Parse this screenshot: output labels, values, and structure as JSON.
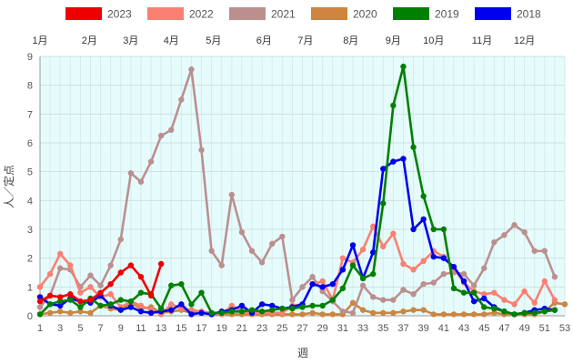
{
  "chart_data": {
    "type": "line",
    "xlabel": "週",
    "ylabel": "人／定点",
    "xlim": [
      1,
      53
    ],
    "ylim": [
      0,
      9
    ],
    "x_ticks": [
      1,
      3,
      5,
      7,
      9,
      11,
      13,
      15,
      17,
      19,
      21,
      23,
      25,
      27,
      29,
      31,
      33,
      35,
      37,
      39,
      41,
      43,
      45,
      47,
      49,
      51,
      53
    ],
    "y_ticks": [
      0,
      1,
      2,
      3,
      4,
      5,
      6,
      7,
      8,
      9
    ],
    "grid": true,
    "legend_position": "top",
    "months": [
      {
        "label": "1月",
        "week": 1
      },
      {
        "label": "2月",
        "week": 5.9
      },
      {
        "label": "3月",
        "week": 10
      },
      {
        "label": "4月",
        "week": 14
      },
      {
        "label": "5月",
        "week": 18.2
      },
      {
        "label": "6月",
        "week": 23.2
      },
      {
        "label": "7月",
        "week": 27.3
      },
      {
        "label": "8月",
        "week": 31.8
      },
      {
        "label": "9月",
        "week": 36
      },
      {
        "label": "10月",
        "week": 40
      },
      {
        "label": "11月",
        "week": 44.8
      },
      {
        "label": "12月",
        "week": 49
      }
    ],
    "series": [
      {
        "name": "2018",
        "color": "#0000ee",
        "x": [
          1,
          2,
          3,
          4,
          5,
          6,
          7,
          8,
          9,
          10,
          11,
          12,
          13,
          14,
          15,
          16,
          17,
          18,
          19,
          20,
          21,
          22,
          23,
          24,
          25,
          26,
          27,
          28,
          29,
          30,
          31,
          32,
          33,
          34,
          35,
          36,
          37,
          38,
          39,
          40,
          41,
          42,
          43,
          44,
          45,
          46,
          47,
          48,
          49,
          50,
          51,
          52
        ],
        "values": [
          0.65,
          0.4,
          0.35,
          0.6,
          0.5,
          0.45,
          0.7,
          0.35,
          0.2,
          0.3,
          0.15,
          0.1,
          0.15,
          0.2,
          0.4,
          0.05,
          0.1,
          0.05,
          0.15,
          0.2,
          0.35,
          0.1,
          0.4,
          0.35,
          0.25,
          0.3,
          0.4,
          1.1,
          1.0,
          1.1,
          1.6,
          2.45,
          1.3,
          2.2,
          5.1,
          5.35,
          5.45,
          3.0,
          3.35,
          2.05,
          2.0,
          1.7,
          1.2,
          0.5,
          0.6,
          0.3,
          0.15,
          0.05,
          0.1,
          0.2,
          0.25,
          0.2
        ]
      },
      {
        "name": "2019",
        "color": "#008000",
        "x": [
          1,
          2,
          3,
          4,
          5,
          6,
          7,
          8,
          9,
          10,
          11,
          12,
          13,
          14,
          15,
          16,
          17,
          18,
          19,
          20,
          21,
          22,
          23,
          24,
          25,
          26,
          27,
          28,
          29,
          30,
          31,
          32,
          33,
          34,
          35,
          36,
          37,
          38,
          39,
          40,
          41,
          42,
          43,
          44,
          45,
          46,
          47,
          48,
          49,
          50,
          51,
          52
        ],
        "values": [
          0.05,
          0.4,
          0.5,
          0.55,
          0.3,
          0.6,
          0.35,
          0.4,
          0.55,
          0.5,
          0.8,
          0.75,
          0.25,
          1.05,
          1.1,
          0.4,
          0.8,
          0.1,
          0.1,
          0.15,
          0.15,
          0.2,
          0.15,
          0.2,
          0.25,
          0.25,
          0.3,
          0.35,
          0.35,
          0.55,
          0.95,
          1.75,
          1.3,
          1.45,
          3.9,
          7.3,
          8.65,
          5.85,
          4.15,
          3.0,
          3.0,
          0.95,
          0.8,
          0.8,
          0.3,
          0.25,
          0.15,
          0.05,
          0.1,
          0.1,
          0.15,
          0.2
        ]
      },
      {
        "name": "2020",
        "color": "#cd853f",
        "x": [
          1,
          2,
          3,
          4,
          5,
          6,
          7,
          8,
          9,
          10,
          11,
          12,
          13,
          14,
          15,
          16,
          17,
          18,
          19,
          20,
          21,
          22,
          23,
          24,
          25,
          26,
          27,
          28,
          29,
          30,
          31,
          32,
          33,
          34,
          35,
          36,
          37,
          38,
          39,
          40,
          41,
          42,
          43,
          44,
          45,
          46,
          47,
          48,
          49,
          50,
          51,
          52,
          53
        ],
        "values": [
          0.05,
          0.1,
          0.15,
          0.1,
          0.15,
          0.1,
          0.35,
          0.25,
          0.2,
          0.45,
          0.25,
          0.3,
          0.1,
          0.15,
          0.2,
          0.1,
          0.1,
          0.05,
          0.05,
          0.05,
          0.05,
          0.05,
          0.05,
          0.05,
          0.05,
          0.05,
          0.05,
          0.1,
          0.05,
          0.05,
          0.05,
          0.45,
          0.2,
          0.1,
          0.1,
          0.1,
          0.15,
          0.2,
          0.2,
          0.05,
          0.05,
          0.05,
          0.05,
          0.05,
          0.05,
          0.1,
          0.05,
          0.05,
          0.05,
          0.05,
          0.15,
          0.45,
          0.4
        ]
      },
      {
        "name": "2021",
        "color": "#bc8f8f",
        "x": [
          1,
          2,
          3,
          4,
          5,
          6,
          7,
          8,
          9,
          10,
          11,
          12,
          13,
          14,
          15,
          16,
          17,
          18,
          19,
          20,
          21,
          22,
          23,
          24,
          25,
          26,
          27,
          28,
          29,
          30,
          31,
          32,
          33,
          34,
          35,
          36,
          37,
          38,
          39,
          40,
          41,
          42,
          43,
          44,
          45,
          46,
          47,
          48,
          49,
          50,
          51,
          52
        ],
        "values": [
          0.3,
          0.7,
          1.65,
          1.6,
          1.0,
          1.4,
          1.05,
          1.75,
          2.65,
          4.95,
          4.65,
          5.35,
          6.25,
          6.45,
          7.5,
          8.55,
          5.75,
          2.25,
          1.75,
          4.2,
          2.9,
          2.25,
          1.85,
          2.5,
          2.75,
          0.55,
          1.0,
          1.35,
          0.85,
          0.5,
          0.15,
          0.1,
          1.05,
          0.65,
          0.55,
          0.55,
          0.9,
          0.75,
          1.1,
          1.15,
          1.45,
          1.5,
          1.45,
          1.05,
          1.65,
          2.55,
          2.8,
          3.15,
          2.9,
          2.25,
          2.25,
          1.35
        ]
      },
      {
        "name": "2022",
        "color": "#fa8072",
        "x": [
          1,
          2,
          3,
          4,
          5,
          6,
          7,
          8,
          9,
          10,
          11,
          12,
          13,
          14,
          15,
          16,
          17,
          18,
          19,
          20,
          21,
          22,
          23,
          24,
          25,
          26,
          27,
          28,
          29,
          30,
          31,
          32,
          33,
          34,
          35,
          36,
          37,
          38,
          39,
          40,
          41,
          42,
          43,
          44,
          45,
          46,
          47,
          48,
          49,
          50,
          51,
          52
        ],
        "values": [
          1.0,
          1.45,
          2.15,
          1.75,
          0.8,
          1.0,
          0.65,
          0.75,
          0.3,
          0.5,
          0.35,
          0.2,
          0.05,
          0.4,
          0.25,
          0.2,
          0.15,
          0.1,
          0.05,
          0.35,
          0.15,
          0.1,
          0.1,
          0.1,
          0.1,
          0.35,
          0.4,
          1.1,
          1.2,
          0.55,
          2.0,
          1.85,
          2.3,
          3.1,
          2.4,
          2.85,
          1.8,
          1.6,
          1.9,
          2.25,
          2.05,
          1.65,
          1.15,
          0.85,
          0.75,
          0.8,
          0.55,
          0.4,
          0.85,
          0.45,
          1.2,
          0.55
        ]
      },
      {
        "name": "2023",
        "color": "#ee0000",
        "x": [
          1,
          2,
          3,
          4,
          5,
          6,
          7,
          8,
          9,
          10,
          11,
          12,
          13
        ],
        "values": [
          0.5,
          0.7,
          0.65,
          0.75,
          0.5,
          0.55,
          0.8,
          1.1,
          1.5,
          1.75,
          1.35,
          0.7,
          1.8
        ]
      }
    ],
    "legend_order": [
      "2023",
      "2022",
      "2021",
      "2020",
      "2019",
      "2018"
    ]
  }
}
